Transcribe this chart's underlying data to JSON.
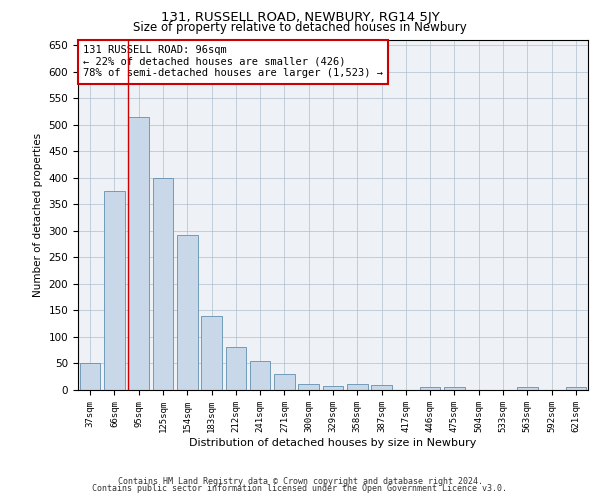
{
  "title": "131, RUSSELL ROAD, NEWBURY, RG14 5JY",
  "subtitle": "Size of property relative to detached houses in Newbury",
  "xlabel": "Distribution of detached houses by size in Newbury",
  "ylabel": "Number of detached properties",
  "bar_labels": [
    "37sqm",
    "66sqm",
    "95sqm",
    "125sqm",
    "154sqm",
    "183sqm",
    "212sqm",
    "241sqm",
    "271sqm",
    "300sqm",
    "329sqm",
    "358sqm",
    "387sqm",
    "417sqm",
    "446sqm",
    "475sqm",
    "504sqm",
    "533sqm",
    "563sqm",
    "592sqm",
    "621sqm"
  ],
  "bar_values": [
    50,
    375,
    515,
    400,
    293,
    140,
    82,
    55,
    30,
    11,
    8,
    11,
    10,
    0,
    5,
    5,
    0,
    0,
    5,
    0,
    5
  ],
  "bar_color": "#c8d8e8",
  "bar_edge_color": "#6090b0",
  "vline_color": "#cc0000",
  "ylim": [
    0,
    660
  ],
  "yticks": [
    0,
    50,
    100,
    150,
    200,
    250,
    300,
    350,
    400,
    450,
    500,
    550,
    600,
    650
  ],
  "annotation_box_text": "131 RUSSELL ROAD: 96sqm\n← 22% of detached houses are smaller (426)\n78% of semi-detached houses are larger (1,523) →",
  "annotation_box_color": "#cc0000",
  "footer1": "Contains HM Land Registry data © Crown copyright and database right 2024.",
  "footer2": "Contains public sector information licensed under the Open Government Licence v3.0.",
  "bg_color": "#eef2f7",
  "grid_color": "#b0c0d0"
}
